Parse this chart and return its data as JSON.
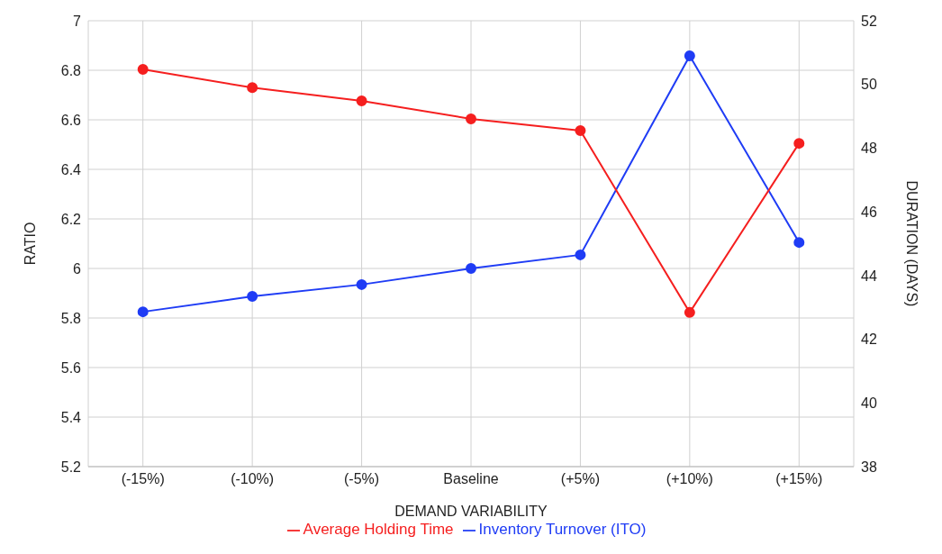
{
  "chart_data": {
    "type": "line",
    "xlabel": "DEMAND VARIABILITY",
    "ylabel": "RATIO",
    "y2label": "DURATION (DAYS)",
    "categories": [
      "(-15%)",
      "(-10%)",
      "(-5%)",
      "Baseline",
      "(+5%)",
      "(+10%)",
      "(+15%)"
    ],
    "series": [
      {
        "name": "Inventory Turnover (ITO)",
        "color": "#1f3cf5",
        "values": [
          5.825,
          5.887,
          5.935,
          6.0,
          6.055,
          6.858,
          6.105
        ]
      },
      {
        "name": "Average Holding Time",
        "color": "#f51f1f",
        "axis": "y2",
        "values": [
          50.47,
          49.9,
          49.48,
          48.92,
          48.55,
          42.84,
          48.15
        ]
      }
    ],
    "ylim": [
      5.2,
      7
    ],
    "yticks": [
      5.2,
      5.4,
      5.6,
      5.8,
      6,
      6.2,
      6.4,
      6.6,
      6.8,
      7
    ],
    "y2lim": [
      38,
      52
    ],
    "y2ticks": [
      38,
      40,
      42,
      44,
      46,
      48,
      50,
      52
    ],
    "grid": true,
    "legend": "bottom",
    "marker": "circle",
    "line_style": "solid"
  }
}
